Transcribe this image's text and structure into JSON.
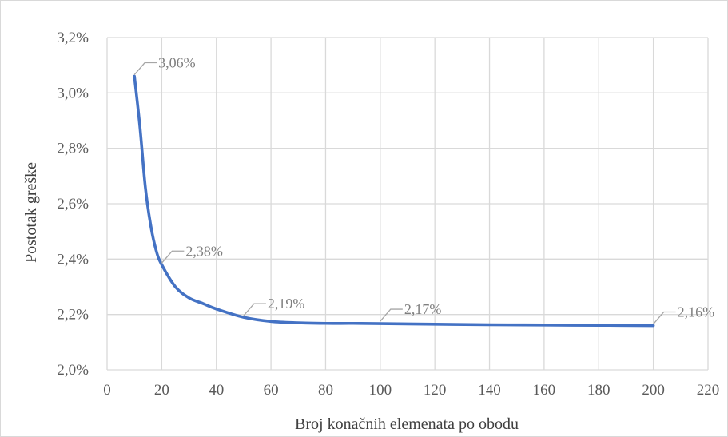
{
  "chart_data": {
    "type": "line",
    "title": "",
    "xlabel": "Broj konačnih elemenata po obodu",
    "ylabel": "Postotak greške",
    "xlim": [
      0,
      220
    ],
    "ylim": [
      2.0,
      3.2
    ],
    "x_ticks": [
      0,
      20,
      40,
      60,
      80,
      100,
      120,
      140,
      160,
      180,
      200,
      220
    ],
    "x_tick_labels": [
      "0",
      "20",
      "40",
      "60",
      "80",
      "100",
      "120",
      "140",
      "160",
      "180",
      "200",
      "220"
    ],
    "y_ticks": [
      2.0,
      2.2,
      2.4,
      2.6,
      2.8,
      3.0,
      3.2
    ],
    "y_tick_labels": [
      "2,0%",
      "2,2%",
      "2,4%",
      "2,6%",
      "2,8%",
      "3,0%",
      "3,2%"
    ],
    "grid": true,
    "legend": "none",
    "series": [
      {
        "color": "#4472c4",
        "x": [
          10,
          12,
          14,
          16,
          18,
          20,
          25,
          30,
          35,
          40,
          50,
          60,
          70,
          80,
          90,
          100,
          120,
          140,
          160,
          180,
          200
        ],
        "y": [
          3.06,
          2.88,
          2.66,
          2.52,
          2.43,
          2.38,
          2.3,
          2.26,
          2.24,
          2.22,
          2.19,
          2.175,
          2.17,
          2.168,
          2.168,
          2.167,
          2.165,
          2.163,
          2.162,
          2.161,
          2.16
        ]
      }
    ],
    "annotations": [
      {
        "x": 10,
        "y": 3.06,
        "label": "3,06%"
      },
      {
        "x": 20,
        "y": 2.38,
        "label": "2,38%"
      },
      {
        "x": 50,
        "y": 2.19,
        "label": "2,19%"
      },
      {
        "x": 100,
        "y": 2.17,
        "label": "2,17%"
      },
      {
        "x": 200,
        "y": 2.16,
        "label": "2,16%"
      }
    ]
  }
}
